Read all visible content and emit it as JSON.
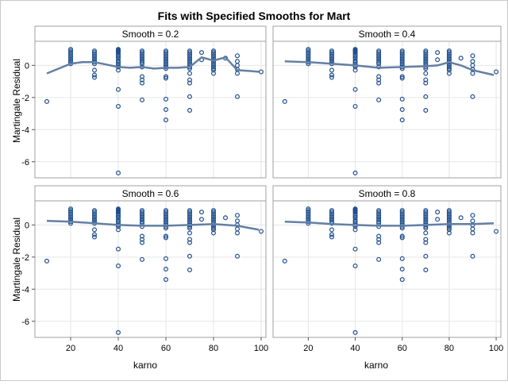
{
  "chart_data": {
    "type": "scatter",
    "title": "Fits with Specified Smooths for Mart",
    "xlabel": "karno",
    "ylabel": "Martingale Residual",
    "xlim": [
      5,
      102
    ],
    "ylim": [
      -7,
      1.5
    ],
    "x_ticks": [
      20,
      40,
      60,
      80,
      100
    ],
    "y_ticks": [
      0,
      -2,
      -4,
      -6
    ],
    "grid": true,
    "panels": [
      {
        "title": "Smooth = 0.2",
        "smooth": [
          [
            10,
            -0.5
          ],
          [
            15,
            -0.2
          ],
          [
            20,
            0.1
          ],
          [
            25,
            0.2
          ],
          [
            30,
            0.2
          ],
          [
            35,
            0.05
          ],
          [
            40,
            -0.1
          ],
          [
            45,
            -0.15
          ],
          [
            50,
            -0.1
          ],
          [
            55,
            -0.2
          ],
          [
            60,
            -0.15
          ],
          [
            65,
            -0.15
          ],
          [
            70,
            -0.1
          ],
          [
            75,
            0.5
          ],
          [
            80,
            0.3
          ],
          [
            85,
            0.5
          ],
          [
            90,
            -0.3
          ],
          [
            95,
            -0.35
          ],
          [
            99,
            -0.4
          ]
        ]
      },
      {
        "title": "Smooth = 0.4",
        "smooth": [
          [
            10,
            0.25
          ],
          [
            20,
            0.2
          ],
          [
            30,
            0.1
          ],
          [
            40,
            0.0
          ],
          [
            50,
            -0.15
          ],
          [
            60,
            -0.1
          ],
          [
            70,
            -0.05
          ],
          [
            75,
            0.0
          ],
          [
            80,
            0.2
          ],
          [
            85,
            0.0
          ],
          [
            90,
            -0.3
          ],
          [
            99,
            -0.6
          ]
        ]
      },
      {
        "title": "Smooth = 0.6",
        "smooth": [
          [
            10,
            0.25
          ],
          [
            20,
            0.2
          ],
          [
            30,
            0.1
          ],
          [
            40,
            0.0
          ],
          [
            50,
            -0.05
          ],
          [
            60,
            -0.05
          ],
          [
            70,
            0.0
          ],
          [
            80,
            0.05
          ],
          [
            90,
            -0.05
          ],
          [
            99,
            -0.3
          ]
        ]
      },
      {
        "title": "Smooth = 0.8",
        "smooth": [
          [
            10,
            0.2
          ],
          [
            20,
            0.15
          ],
          [
            30,
            0.05
          ],
          [
            40,
            0.0
          ],
          [
            50,
            -0.05
          ],
          [
            60,
            -0.05
          ],
          [
            70,
            0.0
          ],
          [
            80,
            0.05
          ],
          [
            90,
            0.05
          ],
          [
            99,
            0.1
          ]
        ]
      }
    ],
    "points": [
      [
        10,
        -2.25
      ],
      [
        20,
        1.0
      ],
      [
        20,
        0.9
      ],
      [
        20,
        0.8
      ],
      [
        20,
        0.7
      ],
      [
        20,
        0.6
      ],
      [
        20,
        0.5
      ],
      [
        20,
        0.4
      ],
      [
        20,
        0.3
      ],
      [
        20,
        0.2
      ],
      [
        20,
        0.1
      ],
      [
        30,
        0.9
      ],
      [
        30,
        0.8
      ],
      [
        30,
        0.7
      ],
      [
        30,
        0.6
      ],
      [
        30,
        0.5
      ],
      [
        30,
        0.4
      ],
      [
        30,
        0.3
      ],
      [
        30,
        0.2
      ],
      [
        30,
        0.1
      ],
      [
        30,
        -0.3
      ],
      [
        30,
        -0.6
      ],
      [
        30,
        -0.75
      ],
      [
        40,
        1.0
      ],
      [
        40,
        0.95
      ],
      [
        40,
        0.9
      ],
      [
        40,
        0.85
      ],
      [
        40,
        0.8
      ],
      [
        40,
        0.7
      ],
      [
        40,
        0.6
      ],
      [
        40,
        0.5
      ],
      [
        40,
        0.45
      ],
      [
        40,
        0.3
      ],
      [
        40,
        0.2
      ],
      [
        40,
        0.1
      ],
      [
        40,
        0.0
      ],
      [
        40,
        -0.1
      ],
      [
        40,
        -0.3
      ],
      [
        40,
        -1.5
      ],
      [
        40,
        -2.55
      ],
      [
        40,
        -6.7
      ],
      [
        50,
        0.9
      ],
      [
        50,
        0.8
      ],
      [
        50,
        0.7
      ],
      [
        50,
        0.6
      ],
      [
        50,
        0.5
      ],
      [
        50,
        0.4
      ],
      [
        50,
        0.3
      ],
      [
        50,
        0.2
      ],
      [
        50,
        0.1
      ],
      [
        50,
        -0.1
      ],
      [
        50,
        -0.7
      ],
      [
        50,
        -0.9
      ],
      [
        50,
        -1.1
      ],
      [
        50,
        -2.15
      ],
      [
        60,
        0.9
      ],
      [
        60,
        0.8
      ],
      [
        60,
        0.7
      ],
      [
        60,
        0.6
      ],
      [
        60,
        0.5
      ],
      [
        60,
        0.4
      ],
      [
        60,
        0.3
      ],
      [
        60,
        0.2
      ],
      [
        60,
        0.1
      ],
      [
        60,
        0.0
      ],
      [
        60,
        -0.1
      ],
      [
        60,
        -0.2
      ],
      [
        60,
        -0.7
      ],
      [
        60,
        -0.8
      ],
      [
        60,
        -2.1
      ],
      [
        60,
        -2.75
      ],
      [
        60,
        -3.4
      ],
      [
        70,
        0.9
      ],
      [
        70,
        0.8
      ],
      [
        70,
        0.7
      ],
      [
        70,
        0.6
      ],
      [
        70,
        0.5
      ],
      [
        70,
        0.4
      ],
      [
        70,
        0.3
      ],
      [
        70,
        0.2
      ],
      [
        70,
        0.1
      ],
      [
        70,
        0.0
      ],
      [
        70,
        -0.1
      ],
      [
        70,
        -0.2
      ],
      [
        70,
        -0.5
      ],
      [
        70,
        -0.9
      ],
      [
        70,
        -1.1
      ],
      [
        70,
        -1.95
      ],
      [
        70,
        -2.8
      ],
      [
        75,
        0.8
      ],
      [
        75,
        0.35
      ],
      [
        80,
        0.9
      ],
      [
        80,
        0.8
      ],
      [
        80,
        0.7
      ],
      [
        80,
        0.6
      ],
      [
        80,
        0.5
      ],
      [
        80,
        0.4
      ],
      [
        80,
        0.3
      ],
      [
        80,
        0.2
      ],
      [
        80,
        0.1
      ],
      [
        80,
        0.0
      ],
      [
        80,
        -0.1
      ],
      [
        80,
        -0.2
      ],
      [
        80,
        -0.3
      ],
      [
        80,
        -0.5
      ],
      [
        85,
        0.45
      ],
      [
        90,
        0.6
      ],
      [
        90,
        0.25
      ],
      [
        90,
        0.0
      ],
      [
        90,
        -0.25
      ],
      [
        90,
        -0.5
      ],
      [
        90,
        -1.95
      ],
      [
        100,
        -0.4
      ]
    ]
  },
  "colors": {
    "marker": "#1f4e8c",
    "smooth": "#637fa5",
    "grid": "#e6e6e6",
    "frame": "#a0a0a0"
  }
}
